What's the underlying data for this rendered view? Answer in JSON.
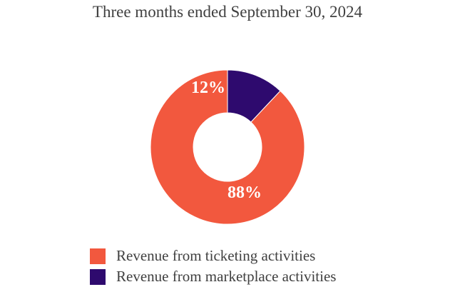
{
  "chart_data": {
    "type": "pie",
    "donut": true,
    "title": "Three months ended September 30, 2024",
    "categories": [
      "Revenue from ticketing activities",
      "Revenue from marketplace activities"
    ],
    "values": [
      88,
      12
    ],
    "data_labels": [
      "88%",
      "12%"
    ],
    "colors": [
      "#F2583E",
      "#2E0A6E"
    ],
    "legend_position": "bottom",
    "start": "top",
    "direction": "counterclockwise"
  }
}
